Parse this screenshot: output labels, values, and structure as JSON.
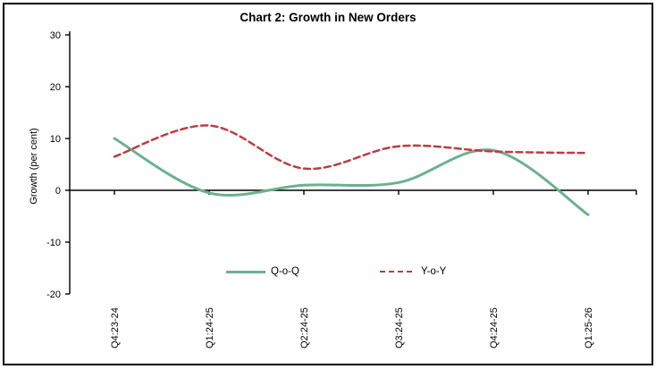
{
  "chart_data": {
    "type": "line",
    "title": "Chart 2: Growth in New Orders",
    "ylabel": "Growth (per cent)",
    "xlabel": "",
    "categories": [
      "Q4:23-24",
      "Q1:24-25",
      "Q2:24-25",
      "Q3:24-25",
      "Q4:24-25",
      "Q1:25-26"
    ],
    "y_ticks": [
      30,
      20,
      10,
      0,
      -10,
      -20
    ],
    "ylim": [
      -20,
      30
    ],
    "grid": false,
    "smooth": true,
    "legend_position": "bottom-center",
    "axis_color": "#000000",
    "series": [
      {
        "name": "Q-o-Q",
        "style": "solid",
        "color": "#6BB18D",
        "values": [
          10,
          -0.5,
          1,
          1.5,
          7.7,
          -4.7
        ]
      },
      {
        "name": "Y-o-Y",
        "style": "dashed",
        "color": "#BE3B43",
        "values": [
          6.5,
          12.5,
          4.2,
          8.5,
          7.5,
          7.2
        ]
      }
    ]
  }
}
